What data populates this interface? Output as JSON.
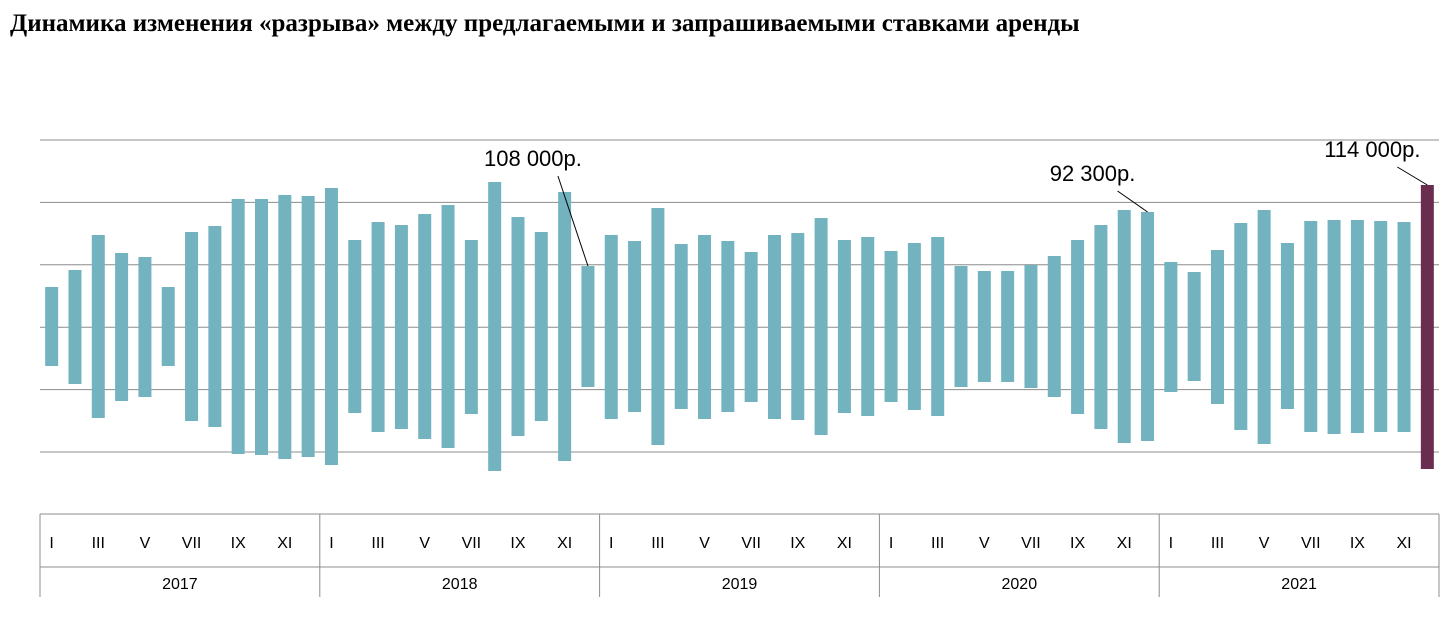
{
  "chart_data": {
    "type": "bar",
    "subtype": "floating-range",
    "title": "Динамика изменения «разрыва» между предлагаемыми и запрашиваемыми ставками аренды",
    "xlabel": "",
    "ylabel": "",
    "grid": true,
    "y_grid_count": 6,
    "colors": {
      "bar": "#72b3bf",
      "highlight": "#6b2d4f",
      "grid": "#8c8c8c",
      "axis": "#8c8c8c"
    },
    "years": [
      {
        "label": "2017",
        "start": 0,
        "end": 12
      },
      {
        "label": "2018",
        "start": 12,
        "end": 24
      },
      {
        "label": "2019",
        "start": 24,
        "end": 36
      },
      {
        "label": "2020",
        "start": 36,
        "end": 48
      },
      {
        "label": "2021",
        "start": 48,
        "end": 60
      }
    ],
    "month_labels": [
      "I",
      "III",
      "V",
      "VII",
      "IX",
      "XI"
    ],
    "ranges": [
      [
        287,
        366
      ],
      [
        270,
        384
      ],
      [
        235,
        418
      ],
      [
        253,
        401
      ],
      [
        257,
        397
      ],
      [
        287,
        366
      ],
      [
        232,
        421
      ],
      [
        226,
        427
      ],
      [
        199,
        454
      ],
      [
        199,
        455
      ],
      [
        195,
        459
      ],
      [
        196,
        457
      ],
      [
        188,
        465
      ],
      [
        240,
        413
      ],
      [
        222,
        432
      ],
      [
        225,
        429
      ],
      [
        214,
        439
      ],
      [
        205,
        448
      ],
      [
        240,
        414
      ],
      [
        182,
        471
      ],
      [
        217,
        436
      ],
      [
        232,
        421
      ],
      [
        192,
        461
      ],
      [
        266,
        387
      ],
      [
        235,
        419
      ],
      [
        241,
        412
      ],
      [
        208,
        445
      ],
      [
        244,
        409
      ],
      [
        235,
        419
      ],
      [
        241,
        412
      ],
      [
        252,
        402
      ],
      [
        235,
        419
      ],
      [
        233,
        420
      ],
      [
        218,
        435
      ],
      [
        240,
        413
      ],
      [
        237,
        416
      ],
      [
        251,
        402
      ],
      [
        243,
        410
      ],
      [
        237,
        416
      ],
      [
        266,
        387
      ],
      [
        271,
        382
      ],
      [
        271,
        382
      ],
      [
        265,
        388
      ],
      [
        256,
        397
      ],
      [
        240,
        414
      ],
      [
        225,
        429
      ],
      [
        210,
        443
      ],
      [
        212,
        441
      ],
      [
        262,
        392
      ],
      [
        272,
        381
      ],
      [
        250,
        404
      ],
      [
        223,
        430
      ],
      [
        210,
        444
      ],
      [
        243,
        409
      ],
      [
        221,
        432
      ],
      [
        220,
        434
      ],
      [
        220,
        433
      ],
      [
        221,
        432
      ],
      [
        222,
        432
      ],
      [
        185,
        469
      ]
    ],
    "highlight_index": 59,
    "annotations": [
      {
        "text": "108 000р.",
        "index": 23,
        "text_y": 166
      },
      {
        "text": "92 300р.",
        "index": 47,
        "text_y": 181
      },
      {
        "text": "114 000р.",
        "index": 59,
        "text_y": 157
      }
    ]
  }
}
